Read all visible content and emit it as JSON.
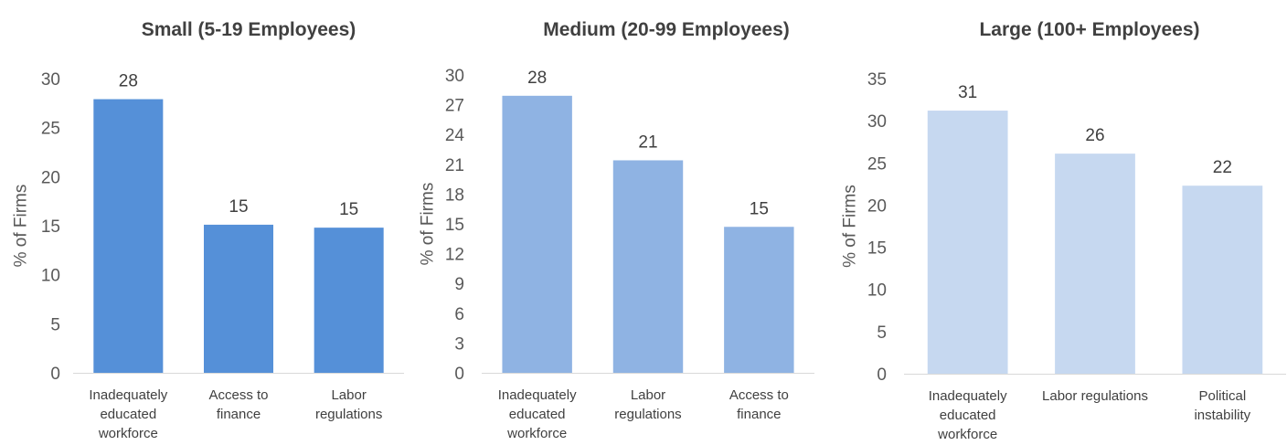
{
  "chart_data": [
    {
      "type": "bar",
      "title": "Small (5-19 Employees)",
      "ylabel": "% of Firms",
      "xlabel": "",
      "categories": [
        [
          "Inadequately",
          "educated",
          "workforce"
        ],
        [
          "Access to",
          "finance"
        ],
        [
          "Labor",
          "regulations"
        ]
      ],
      "values": [
        27.9,
        15.1,
        14.8
      ],
      "data_labels": [
        "28",
        "15",
        "15"
      ],
      "ylim": [
        0,
        30
      ],
      "yticks": [
        0,
        5,
        10,
        15,
        20,
        25,
        30
      ],
      "color": "#5590d8",
      "grid": false
    },
    {
      "type": "bar",
      "title": "Medium (20-99 Employees)",
      "ylabel": "% of Firms",
      "xlabel": "",
      "categories": [
        [
          "Inadequately",
          "educated",
          "workforce"
        ],
        [
          "Labor",
          "regulations"
        ],
        [
          "Access to",
          "finance"
        ]
      ],
      "values": [
        27.9,
        21.4,
        14.7
      ],
      "data_labels": [
        "28",
        "21",
        "15"
      ],
      "ylim": [
        0,
        30
      ],
      "yticks": [
        0,
        3,
        6,
        9,
        12,
        15,
        18,
        21,
        24,
        27,
        30
      ],
      "color": "#8fb3e3",
      "grid": false
    },
    {
      "type": "bar",
      "title": "Large (100+ Employees)",
      "ylabel": "% of Firms",
      "xlabel": "",
      "categories": [
        [
          "Inadequately",
          "educated",
          "workforce"
        ],
        [
          "Labor regulations"
        ],
        [
          "Political",
          "instability"
        ]
      ],
      "values": [
        31.2,
        26.1,
        22.3
      ],
      "data_labels": [
        "31",
        "26",
        "22"
      ],
      "ylim": [
        0,
        35
      ],
      "yticks": [
        0,
        5,
        10,
        15,
        20,
        25,
        30,
        35
      ],
      "color": "#c6d8f0",
      "grid": false
    }
  ]
}
